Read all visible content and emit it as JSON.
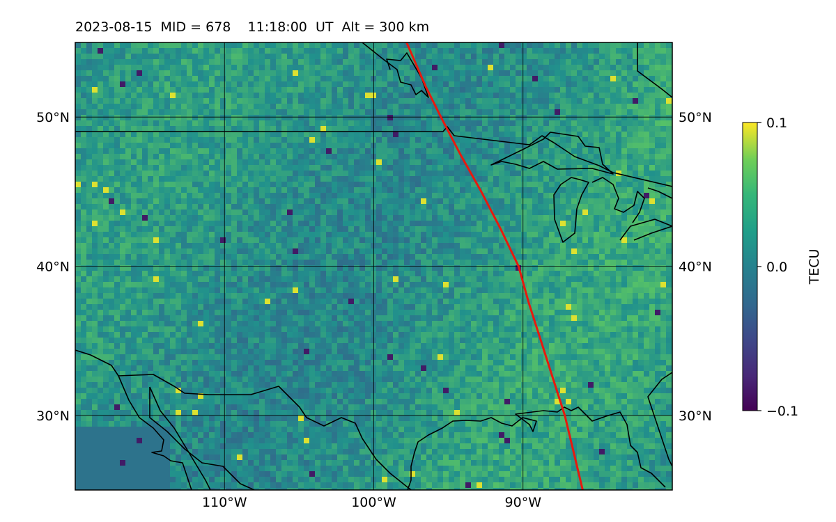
{
  "title": "2023-08-15  MID = 678    11:18:00  UT  Alt = 300 km",
  "map": {
    "lon_range": [
      -120,
      -80
    ],
    "lat_range": [
      25,
      55
    ],
    "lat_ticks": [
      {
        "value": 50,
        "label": "50°N"
      },
      {
        "value": 40,
        "label": "40°N"
      },
      {
        "value": 30,
        "label": "30°N"
      }
    ],
    "lon_ticks": [
      {
        "value": -110,
        "label": "110°W"
      },
      {
        "value": -100,
        "label": "100°W"
      },
      {
        "value": -90,
        "label": "90°W"
      }
    ],
    "gridlines": true,
    "coastline_color": "#000000",
    "track_color": "#e8190e",
    "track": [
      [
        -97.8,
        55
      ],
      [
        -96.5,
        52
      ],
      [
        -95.5,
        50
      ],
      [
        -94.2,
        47.5
      ],
      [
        -92.8,
        45
      ],
      [
        -91.5,
        42.5
      ],
      [
        -90.3,
        40
      ],
      [
        -89.6,
        37.5
      ],
      [
        -88.8,
        35
      ],
      [
        -88.0,
        32.5
      ],
      [
        -87.2,
        30
      ],
      [
        -86.6,
        27.5
      ],
      [
        -86.0,
        25
      ]
    ]
  },
  "colorbar": {
    "label": "TECU",
    "min": -0.1,
    "max": 0.1,
    "ticks": [
      {
        "value": 0.1,
        "label": "0.1"
      },
      {
        "value": 0.0,
        "label": "0.0"
      },
      {
        "value": -0.1,
        "label": "−0.1"
      }
    ],
    "colormap": "viridis"
  }
}
